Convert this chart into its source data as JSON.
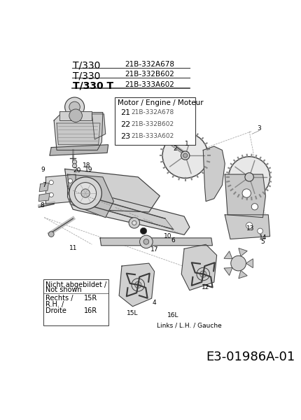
{
  "bg_color": "#ffffff",
  "fig_width": 4.31,
  "fig_height": 6.0,
  "dpi": 100,
  "header": {
    "rows": [
      {
        "model": "T/330",
        "code": "21B-332A678"
      },
      {
        "model": "T/330",
        "code": "21B-332B602"
      },
      {
        "model": "T/330 T",
        "code": "21B-333A602"
      }
    ]
  },
  "engine_box": {
    "title": "Motor / Engine / Moteur",
    "items": [
      {
        "num": "21",
        "code": "21B-332A678"
      },
      {
        "num": "22",
        "code": "21B-332B602"
      },
      {
        "num": "23",
        "code": "21B-333A602"
      }
    ]
  },
  "footer_left_box": {
    "title1": "Nicht abgebildet /",
    "title2": "Not shown",
    "row1_label": "Rechts /",
    "row1_val": "15R",
    "row2_label": "R.H. /",
    "row3_label": "Droite",
    "row3_val": "16R"
  },
  "footer_right": "Links / L.H. / Gauche",
  "ref_code": "E3-01986A-01",
  "lc": "#3a3a3a"
}
